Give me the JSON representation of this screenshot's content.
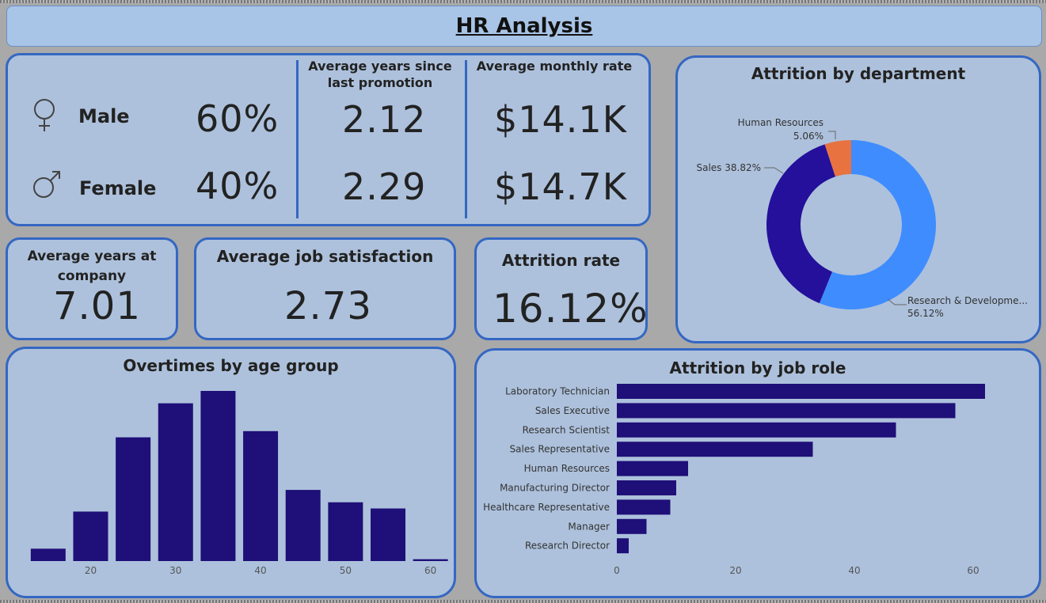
{
  "header": {
    "title": "HR Analysis"
  },
  "gender": {
    "male_label": "Male",
    "male_pct": "60%",
    "female_label": "Female",
    "female_pct": "40%",
    "male_icon": "venus-symbol-icon",
    "female_icon": "mars-symbol-icon"
  },
  "promotion": {
    "label": "Average years since last promotion",
    "male_value": "2.12",
    "female_value": "2.29"
  },
  "monthly_rate": {
    "label": "Average monthly rate",
    "male_value": "$14.1K",
    "female_value": "$14.7K"
  },
  "kpis": {
    "years_label": "Average years at company",
    "years_value": "7.01",
    "satisfaction_label": "Average job satisfaction",
    "satisfaction_value": "2.73",
    "attrition_label": "Attrition rate",
    "attrition_value": "16.12%"
  },
  "colors": {
    "accent": "#3467c3",
    "bar": "#1f0f78",
    "card": "#adc1dc",
    "donut_rd": "#3f8cff",
    "donut_sales": "#24109b",
    "donut_hr": "#e87240"
  },
  "chart_data": [
    {
      "type": "pie",
      "title": "Attrition by department",
      "categories": [
        "Research & Developme...",
        "Sales",
        "Human Resources"
      ],
      "values": [
        56.12,
        38.82,
        5.06
      ],
      "value_labels": [
        "56.12%",
        "38.82%",
        "5.06%"
      ],
      "colors": [
        "#3f8cff",
        "#24109b",
        "#e87240"
      ]
    },
    {
      "type": "bar",
      "title": "Overtimes by age group",
      "x": [
        15,
        20,
        25,
        30,
        35,
        40,
        45,
        50,
        55,
        60
      ],
      "values": [
        2,
        8,
        20,
        25.5,
        27.5,
        21,
        11.5,
        9.5,
        8.5,
        0.3
      ],
      "xticks": [
        20,
        30,
        40,
        50,
        60
      ],
      "xlabel": "",
      "ylabel": ""
    },
    {
      "type": "bar",
      "orientation": "horizontal",
      "title": "Attrition by job role",
      "categories": [
        "Laboratory Technician",
        "Sales Executive",
        "Research Scientist",
        "Sales Representative",
        "Human Resources",
        "Manufacturing Director",
        "Healthcare Representative",
        "Manager",
        "Research Director"
      ],
      "values": [
        62,
        57,
        47,
        33,
        12,
        10,
        9,
        5,
        2
      ],
      "xticks": [
        0,
        20,
        40,
        60
      ],
      "xlim": [
        0,
        70
      ]
    }
  ]
}
